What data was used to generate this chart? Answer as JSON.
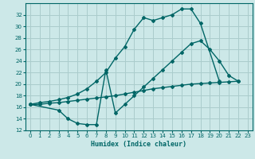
{
  "bg_color": "#cce8e8",
  "line_color": "#006666",
  "grid_color": "#aacccc",
  "xlabel": "Humidex (Indice chaleur)",
  "ylim": [
    12,
    34
  ],
  "xlim": [
    -0.5,
    23.5
  ],
  "yticks": [
    12,
    14,
    16,
    18,
    20,
    22,
    24,
    26,
    28,
    30,
    32
  ],
  "xticks": [
    0,
    1,
    2,
    3,
    4,
    5,
    6,
    7,
    8,
    9,
    10,
    11,
    12,
    13,
    14,
    15,
    16,
    17,
    18,
    19,
    20,
    21,
    22,
    23
  ],
  "line1_x": [
    0,
    1,
    2,
    3,
    4,
    5,
    6,
    7,
    8,
    9,
    10,
    11,
    12,
    13,
    14,
    15,
    16,
    17,
    18,
    20
  ],
  "line1_y": [
    16.5,
    16.8,
    17.0,
    17.3,
    17.7,
    18.3,
    19.2,
    20.5,
    22.0,
    24.5,
    26.5,
    29.5,
    31.5,
    31.0,
    31.5,
    32.0,
    33.0,
    33.0,
    30.5,
    20.5
  ],
  "line2_x": [
    0,
    3,
    4,
    5,
    6,
    7,
    8,
    9,
    10,
    11,
    12,
    13,
    14,
    15,
    16,
    17,
    18,
    19,
    20,
    21,
    22
  ],
  "line2_y": [
    16.5,
    15.5,
    14.0,
    13.2,
    13.0,
    13.0,
    22.5,
    15.0,
    16.5,
    18.0,
    19.5,
    21.0,
    22.5,
    24.0,
    25.5,
    27.0,
    27.5,
    26.0,
    24.0,
    21.5,
    20.5
  ],
  "line3_x": [
    0,
    1,
    2,
    3,
    4,
    5,
    6,
    7,
    8,
    9,
    10,
    11,
    12,
    13,
    14,
    15,
    16,
    17,
    18,
    19,
    20,
    21,
    22
  ],
  "line3_y": [
    16.5,
    16.5,
    16.7,
    16.8,
    17.0,
    17.2,
    17.4,
    17.6,
    17.8,
    18.0,
    18.3,
    18.6,
    18.9,
    19.2,
    19.4,
    19.6,
    19.8,
    20.0,
    20.1,
    20.2,
    20.3,
    20.4,
    20.5
  ]
}
